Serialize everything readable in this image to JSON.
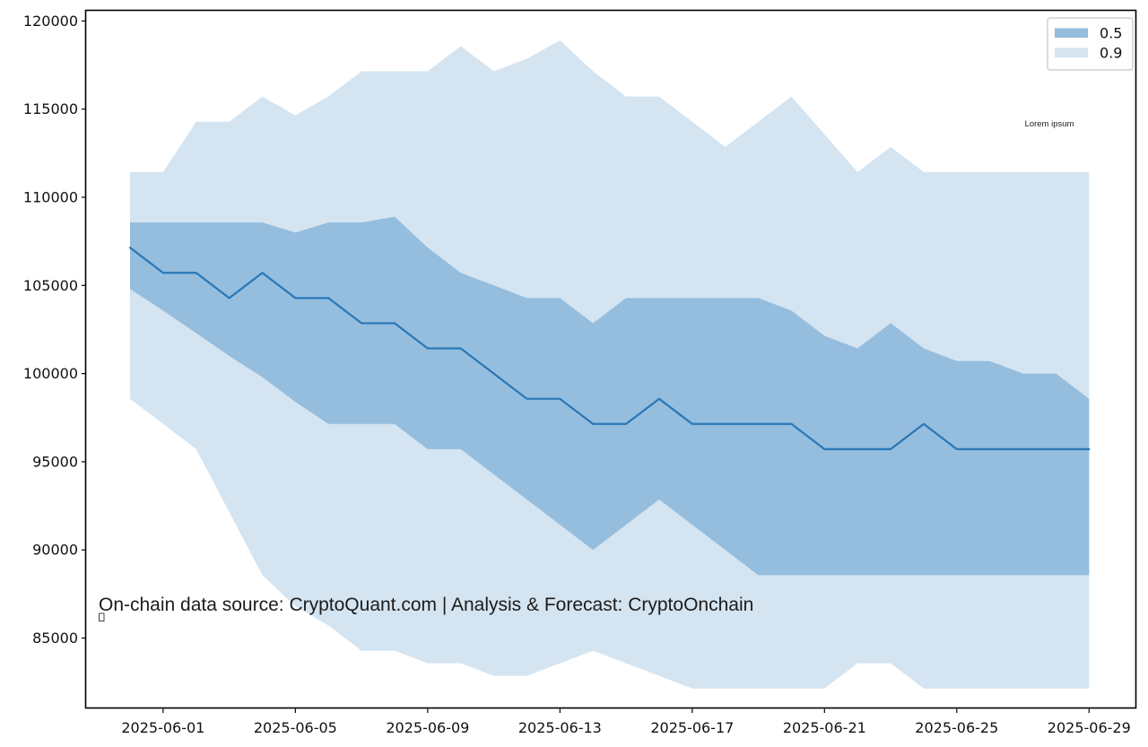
{
  "figure": {
    "annotation": "On-chain data source: CryptoQuant.com | Analysis & Forecast: CryptoOnchain",
    "watermark": "Lorem ipsum"
  },
  "legend": {
    "position": "upper right",
    "entries": [
      {
        "label": "0.5",
        "color": "#94bdde"
      },
      {
        "label": "0.9",
        "color": "#d4e4f1"
      }
    ]
  },
  "chart_data": {
    "type": "area",
    "title": "",
    "xlabel": "",
    "ylabel": "",
    "grid": false,
    "legend_position": "upper right",
    "ylim": [
      80800,
      120600
    ],
    "y_ticks": [
      85000,
      90000,
      95000,
      100000,
      105000,
      110000,
      115000,
      120000
    ],
    "x_tick_labels": [
      "2025-06-01",
      "2025-06-05",
      "2025-06-09",
      "2025-06-13",
      "2025-06-17",
      "2025-06-21",
      "2025-06-25",
      "2025-06-29"
    ],
    "x": [
      "2025-05-31",
      "2025-06-01",
      "2025-06-02",
      "2025-06-03",
      "2025-06-04",
      "2025-06-05",
      "2025-06-06",
      "2025-06-07",
      "2025-06-08",
      "2025-06-09",
      "2025-06-10",
      "2025-06-11",
      "2025-06-12",
      "2025-06-13",
      "2025-06-14",
      "2025-06-15",
      "2025-06-16",
      "2025-06-17",
      "2025-06-18",
      "2025-06-19",
      "2025-06-20",
      "2025-06-21",
      "2025-06-22",
      "2025-06-23",
      "2025-06-24",
      "2025-06-25",
      "2025-06-26",
      "2025-06-27",
      "2025-06-28",
      "2025-06-29"
    ],
    "series": [
      {
        "name": "median-forecast",
        "kind": "line",
        "color": "#2878b8",
        "values": [
          107143,
          105714,
          105714,
          104286,
          105714,
          104286,
          104286,
          102857,
          102857,
          101429,
          101429,
          100000,
          98571,
          98571,
          97143,
          97143,
          98571,
          97143,
          97143,
          97143,
          97143,
          95714,
          95714,
          95714,
          97143,
          95714,
          95714,
          95714,
          95714,
          95714
        ]
      },
      {
        "name": "0.5",
        "kind": "band",
        "color": "#94bdde",
        "upper": [
          108571,
          108571,
          108571,
          108571,
          108571,
          108000,
          108571,
          108571,
          108900,
          107143,
          105714,
          105000,
          104286,
          104286,
          102857,
          104286,
          104286,
          104286,
          104286,
          104286,
          103571,
          102143,
          101429,
          102857,
          101429,
          100714,
          100714,
          100000,
          100000,
          98571
        ],
        "lower": [
          104800,
          103571,
          102300,
          101000,
          99800,
          98400,
          97143,
          97143,
          97143,
          95714,
          95714,
          94286,
          92857,
          91429,
          90000,
          91429,
          92857,
          91429,
          90000,
          88571,
          88571,
          88571,
          88571,
          88571,
          88571,
          88571,
          88571,
          88571,
          88571,
          88571
        ]
      },
      {
        "name": "0.9",
        "kind": "band",
        "color": "#d4e4f1",
        "upper": [
          111429,
          111429,
          114286,
          114286,
          115714,
          114643,
          115714,
          117143,
          117143,
          117143,
          118571,
          117143,
          117857,
          118900,
          117143,
          115714,
          115714,
          114286,
          112857,
          114286,
          115714,
          113571,
          111429,
          112857,
          111429,
          111429,
          111429,
          111429,
          111429,
          111429
        ],
        "lower": [
          98571,
          97143,
          95714,
          92143,
          88571,
          86800,
          85714,
          84286,
          84286,
          83571,
          83571,
          82857,
          82857,
          83571,
          84286,
          83571,
          82857,
          82143,
          82143,
          82143,
          82143,
          82143,
          83571,
          83571,
          82143,
          82143,
          82143,
          82143,
          82143,
          82143
        ]
      }
    ]
  }
}
